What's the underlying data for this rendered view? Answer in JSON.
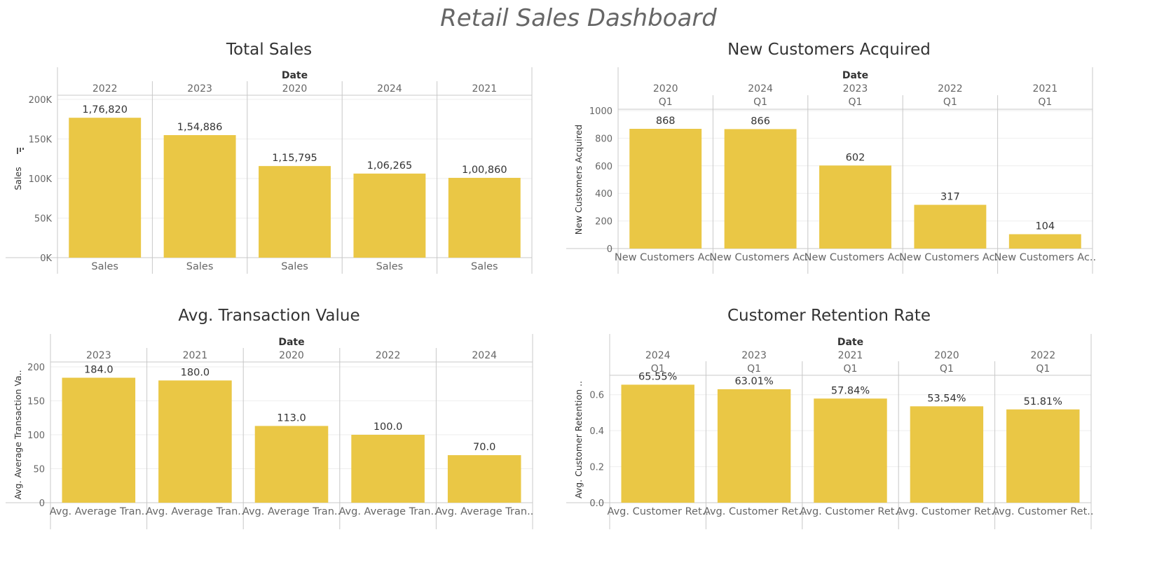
{
  "dashboard": {
    "title": "Retail Sales Dashboard"
  },
  "colors": {
    "bar": "#EAC745",
    "gridline": "#EEEEEE",
    "divider": "#C8C8C8"
  },
  "chart_data": [
    {
      "id": "total-sales",
      "type": "bar",
      "title": "Total Sales",
      "header_title": "Date",
      "ylabel": "Sales",
      "categories": [
        "2022",
        "2023",
        "2020",
        "2024",
        "2021"
      ],
      "sub_categories": [],
      "values": [
        176820,
        154886,
        115795,
        106265,
        100860
      ],
      "value_labels": [
        "1,76,820",
        "1,54,886",
        "1,15,795",
        "1,06,265",
        "1,00,860"
      ],
      "footer_labels": [
        "Sales",
        "Sales",
        "Sales",
        "Sales",
        "Sales"
      ],
      "ylim": [
        0,
        200000
      ],
      "yticks": [
        0,
        50000,
        100000,
        150000,
        200000
      ],
      "ytick_labels": [
        "0K",
        "50K",
        "100K",
        "150K",
        "200K"
      ],
      "grid": true,
      "sort_icon": true
    },
    {
      "id": "new-customers",
      "type": "bar",
      "title": "New Customers Acquired",
      "header_title": "Date",
      "ylabel": "New Customers Acquired",
      "categories": [
        "2020",
        "2024",
        "2023",
        "2022",
        "2021"
      ],
      "sub_categories": [
        "Q1",
        "Q1",
        "Q1",
        "Q1",
        "Q1"
      ],
      "values": [
        868,
        866,
        602,
        317,
        104
      ],
      "value_labels": [
        "868",
        "866",
        "602",
        "317",
        "104"
      ],
      "footer_labels": [
        "New Customers Ac..",
        "New Customers Ac..",
        "New Customers Ac..",
        "New Customers Ac..",
        "New Customers Ac.."
      ],
      "ylim": [
        0,
        1000
      ],
      "yticks": [
        0,
        200,
        400,
        600,
        800,
        1000
      ],
      "ytick_labels": [
        "0",
        "200",
        "400",
        "600",
        "800",
        "1000"
      ],
      "grid": true,
      "sort_icon": false
    },
    {
      "id": "avg-transaction",
      "type": "bar",
      "title": "Avg. Transaction Value",
      "header_title": "Date",
      "ylabel": "Avg. Average Transaction Va..",
      "categories": [
        "2023",
        "2021",
        "2020",
        "2022",
        "2024"
      ],
      "sub_categories": [],
      "values": [
        184.0,
        180.0,
        113.0,
        100.0,
        70.0
      ],
      "value_labels": [
        "184.0",
        "180.0",
        "113.0",
        "100.0",
        "70.0"
      ],
      "footer_labels": [
        "Avg. Average Tran..",
        "Avg. Average Tran..",
        "Avg. Average Tran..",
        "Avg. Average Tran..",
        "Avg. Average Tran.."
      ],
      "ylim": [
        0,
        200
      ],
      "yticks": [
        0,
        50,
        100,
        150,
        200
      ],
      "ytick_labels": [
        "0",
        "50",
        "100",
        "150",
        "200"
      ],
      "grid": true,
      "sort_icon": false
    },
    {
      "id": "retention-rate",
      "type": "bar",
      "title": "Customer Retention Rate",
      "header_title": "Date",
      "ylabel": "Avg. Customer Retention ..",
      "categories": [
        "2024",
        "2023",
        "2021",
        "2020",
        "2022"
      ],
      "sub_categories": [
        "Q1",
        "Q1",
        "Q1",
        "Q1",
        "Q1"
      ],
      "values": [
        0.6555,
        0.6301,
        0.5784,
        0.5354,
        0.5181
      ],
      "value_labels": [
        "65.55%",
        "63.01%",
        "57.84%",
        "53.54%",
        "51.81%"
      ],
      "footer_labels": [
        "Avg. Customer Ret..",
        "Avg. Customer Ret..",
        "Avg. Customer Ret..",
        "Avg. Customer Ret..",
        "Avg. Customer Ret.."
      ],
      "ylim": [
        0,
        0.7
      ],
      "yticks": [
        0,
        0.2,
        0.4,
        0.6
      ],
      "ytick_labels": [
        "0.0",
        "0.2",
        "0.4",
        "0.6"
      ],
      "grid": true,
      "sort_icon": false
    }
  ]
}
